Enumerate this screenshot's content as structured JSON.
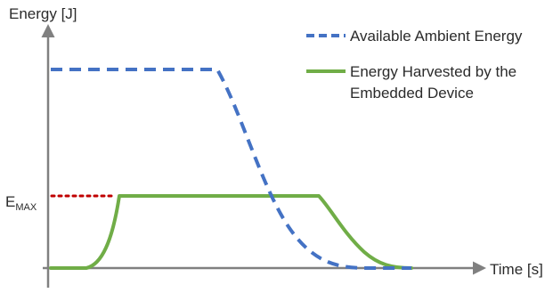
{
  "axes": {
    "y_label": "Energy [J]",
    "x_label": "Time [s]"
  },
  "threshold": {
    "label_main": "E",
    "label_sub": "MAX",
    "color": "#c00000"
  },
  "legend": {
    "ambient": {
      "label": "Available Ambient Energy",
      "color": "#4472c4",
      "style": "dashed"
    },
    "harvested": {
      "label_line1": "Energy Harvested by the",
      "label_line2": "Embedded Device",
      "color": "#70ad47",
      "style": "solid"
    }
  },
  "axis_color": "#808080"
}
